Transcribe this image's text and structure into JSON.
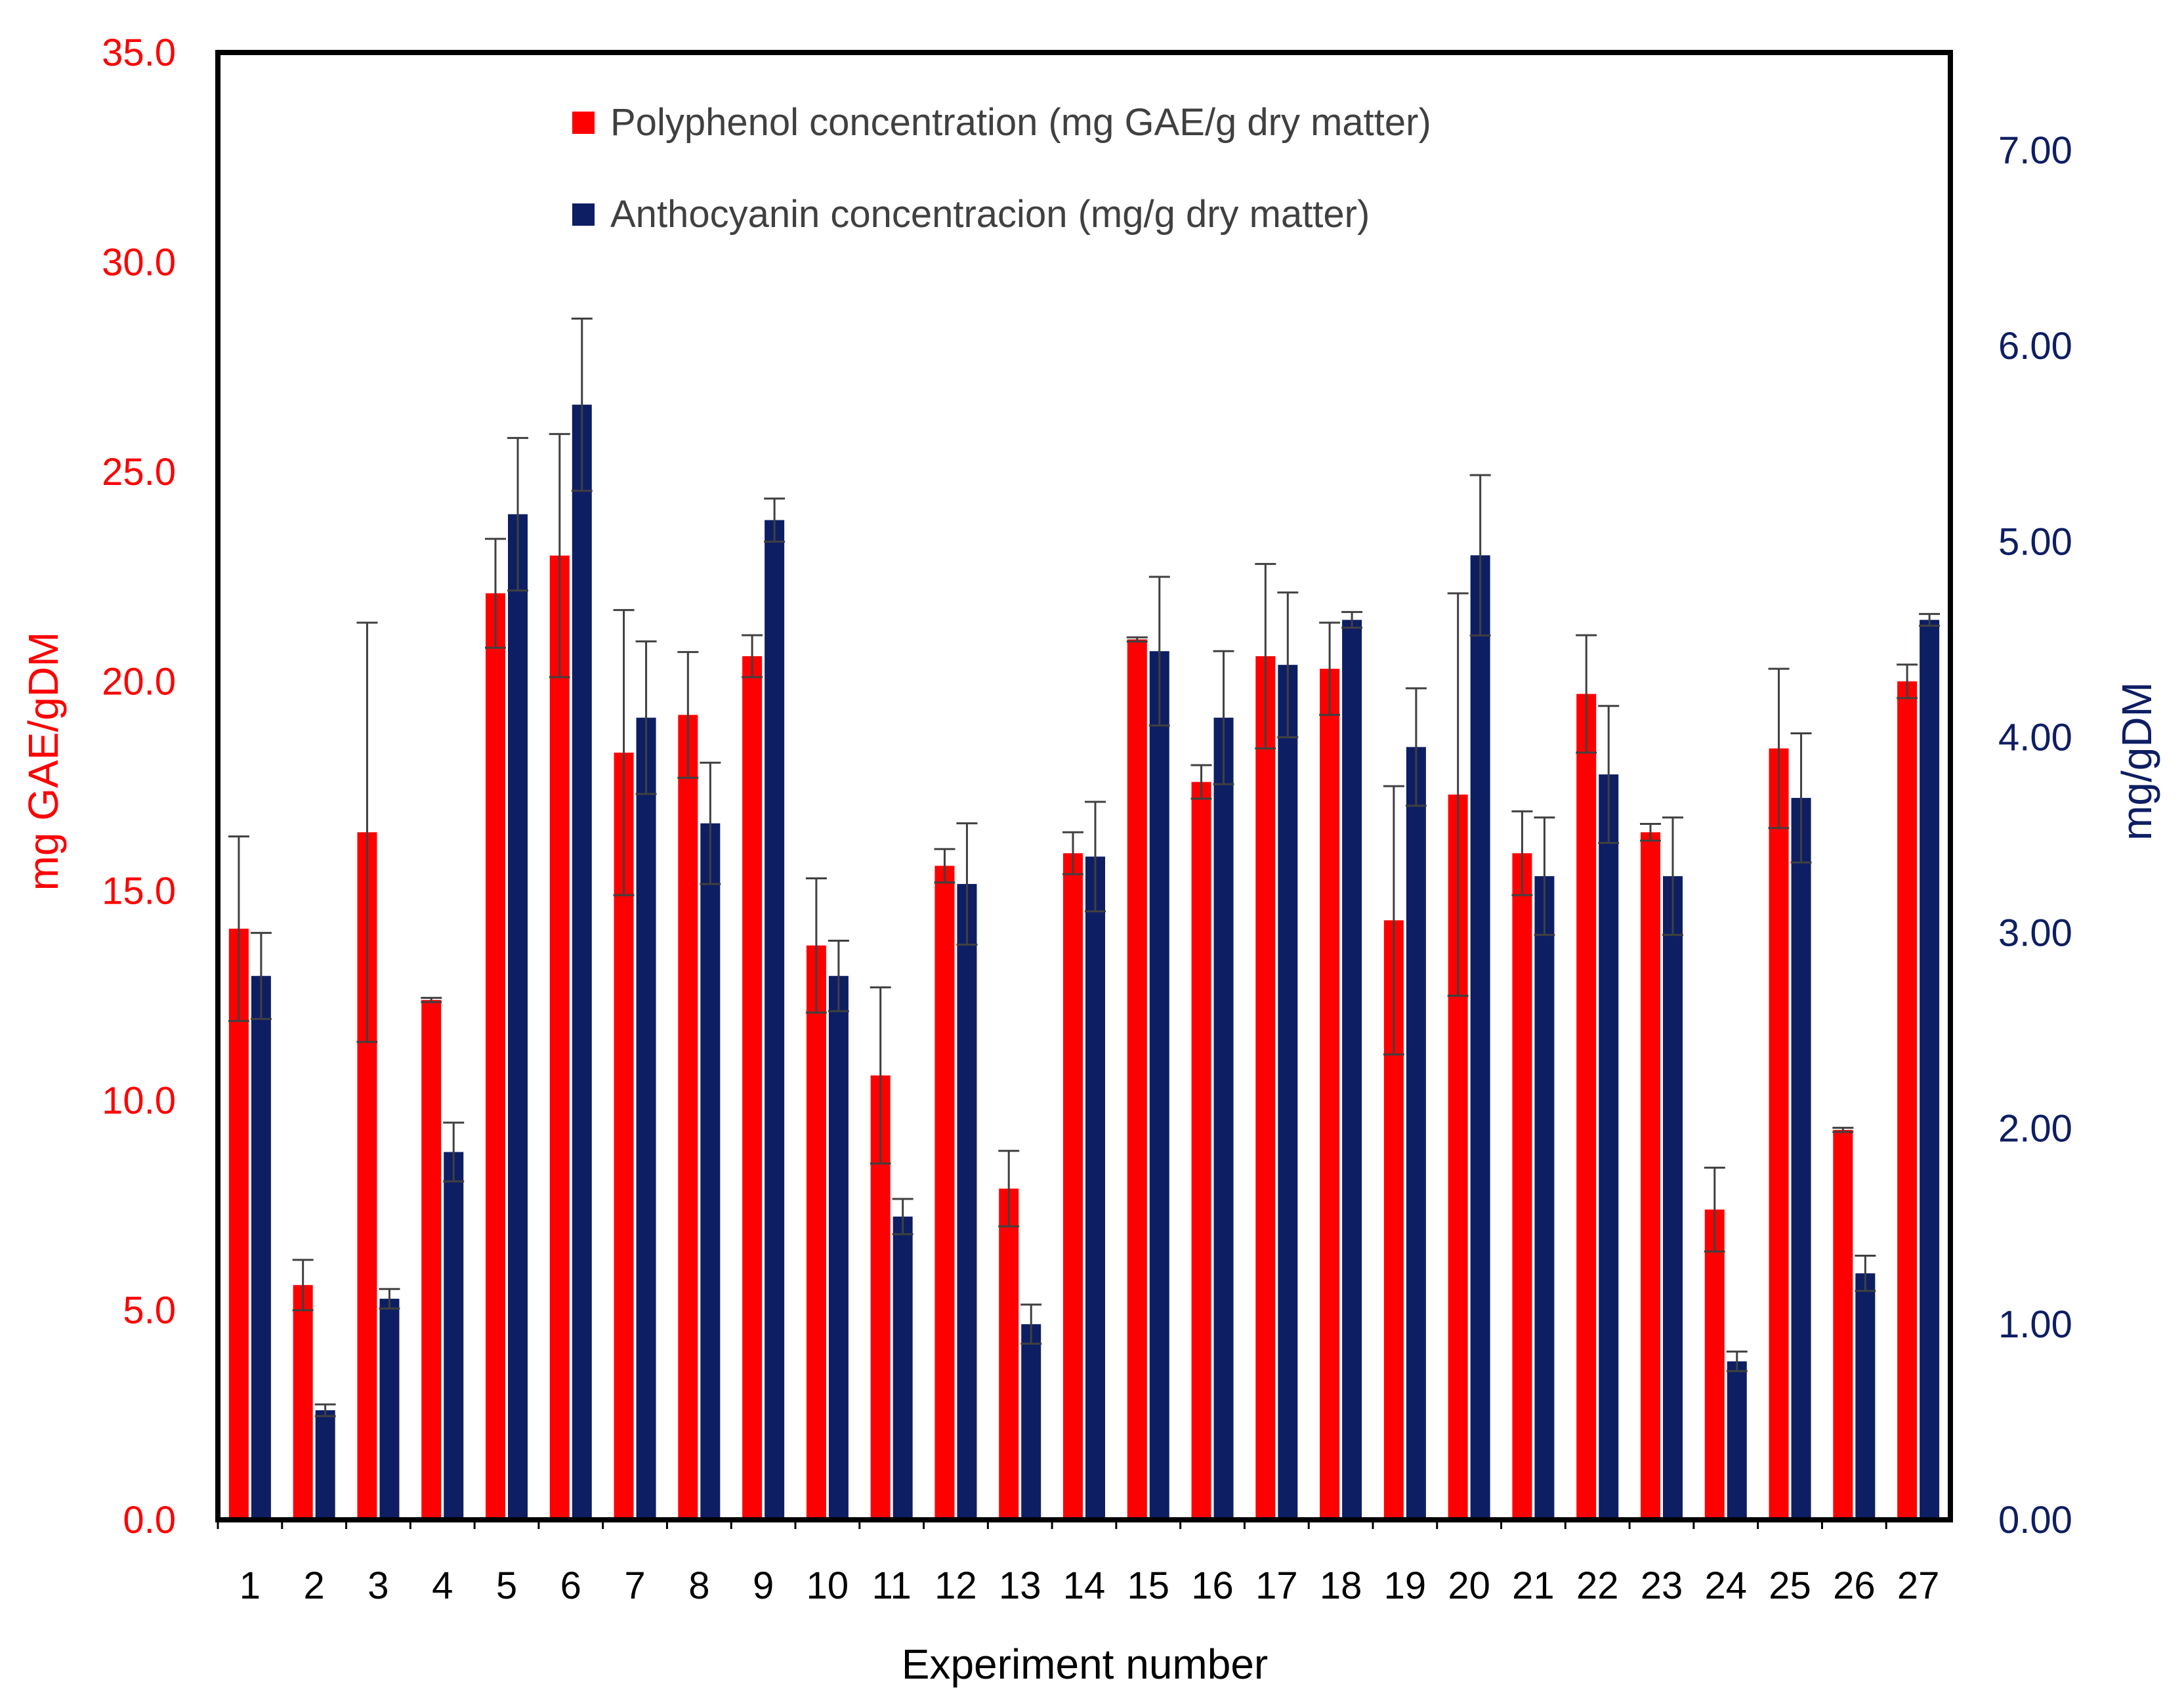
{
  "chart_data": {
    "type": "bar",
    "title": "",
    "xlabel": "Experiment number",
    "ylabel_left": "mg GAE/gDM",
    "ylabel_right": "mg/gDM",
    "ylim_left": [
      0,
      35
    ],
    "ylim_right": [
      0,
      7.5
    ],
    "yticks_left": [
      "0.0",
      "5.0",
      "10.0",
      "15.0",
      "20.0",
      "25.0",
      "30.0",
      "35.0"
    ],
    "yticks_right": [
      "0.00",
      "1.00",
      "2.00",
      "3.00",
      "4.00",
      "5.00",
      "6.00",
      "7.00"
    ],
    "categories": [
      "1",
      "2",
      "3",
      "4",
      "5",
      "6",
      "7",
      "8",
      "9",
      "10",
      "11",
      "12",
      "13",
      "14",
      "15",
      "16",
      "17",
      "18",
      "19",
      "20",
      "21",
      "22",
      "23",
      "24",
      "25",
      "26",
      "27"
    ],
    "legend_position": "top-center",
    "series": [
      {
        "name": "Polyphenol concentration (mg GAE/g dry matter)",
        "axis": "left",
        "color": "#ff0000",
        "values": [
          14.1,
          5.6,
          16.4,
          12.4,
          22.1,
          23.0,
          18.3,
          19.2,
          20.6,
          13.7,
          10.6,
          15.6,
          7.9,
          15.9,
          21.0,
          17.6,
          20.6,
          20.3,
          14.3,
          17.3,
          15.9,
          19.7,
          16.4,
          7.4,
          18.4,
          9.3,
          20.0
        ],
        "errors": [
          2.2,
          0.6,
          5.0,
          0.05,
          1.3,
          2.9,
          3.4,
          1.5,
          0.5,
          1.6,
          2.1,
          0.4,
          0.9,
          0.5,
          0.05,
          0.4,
          2.2,
          1.1,
          3.2,
          4.8,
          1.0,
          1.4,
          0.2,
          1.0,
          1.9,
          0.05,
          0.4
        ]
      },
      {
        "name": "Anthocyanin concentracion (mg/g dry matter)",
        "axis": "right",
        "color": "#0d1e63",
        "values": [
          2.78,
          0.56,
          1.13,
          1.88,
          5.14,
          5.7,
          4.1,
          3.56,
          5.11,
          2.78,
          1.55,
          3.25,
          1.0,
          3.39,
          4.44,
          4.1,
          4.37,
          4.6,
          3.95,
          4.93,
          3.29,
          3.81,
          3.29,
          0.81,
          3.69,
          1.26,
          4.6
        ],
        "errors": [
          0.22,
          0.03,
          0.05,
          0.15,
          0.39,
          0.44,
          0.39,
          0.31,
          0.11,
          0.18,
          0.09,
          0.31,
          0.1,
          0.28,
          0.38,
          0.34,
          0.37,
          0.04,
          0.3,
          0.41,
          0.3,
          0.35,
          0.3,
          0.05,
          0.33,
          0.09,
          0.03
        ]
      }
    ]
  }
}
